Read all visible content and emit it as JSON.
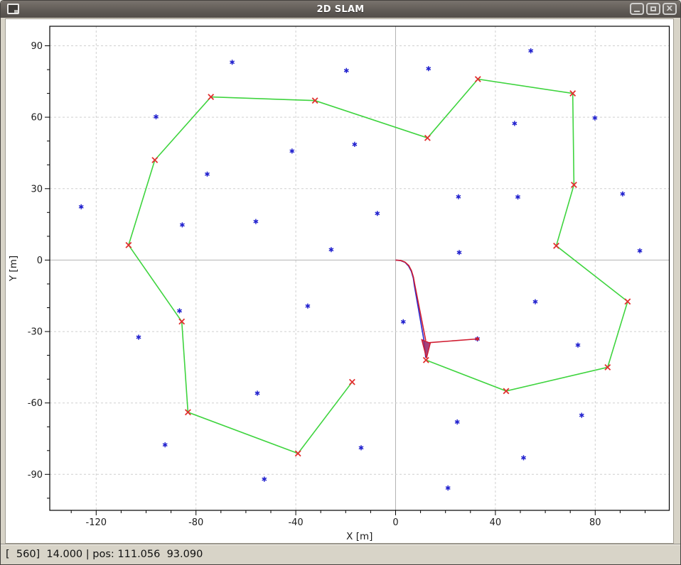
{
  "window": {
    "title": "2D SLAM",
    "icon": "window-icon",
    "controls": [
      {
        "name": "minimize"
      },
      {
        "name": "maximize"
      },
      {
        "name": "close"
      }
    ]
  },
  "status": {
    "text": "[  560]  14.000 | pos: 111.056  93.090"
  },
  "chart_data": {
    "type": "scatter",
    "title": "2D SLAM",
    "xlabel": "X [m]",
    "ylabel": "Y [m]",
    "xlim": [
      -138.6,
      109.7
    ],
    "ylim": [
      -105.1,
      98.2
    ],
    "xticks": [
      -120,
      -80,
      -40,
      0,
      40,
      80
    ],
    "yticks": [
      90,
      60,
      30,
      0,
      -30,
      -60,
      -90
    ],
    "minor_tick_step": 10,
    "grid": "major dashed light-gray, solid light line at x=0 and y=0",
    "legend": "none",
    "colors": {
      "landmark": "#2424cf",
      "waypoint_marker": "#e23030",
      "waypoint_path": "#3ed43e",
      "trajectory_true": "#d01c30",
      "trajectory_estimated": "#2a2ad0",
      "robot_fill": "#9c2f6d",
      "grid_dashed": "#cfcfcf",
      "grid_zero": "#b3b3b3"
    },
    "series": [
      {
        "name": "landmarks",
        "marker": "asterisk",
        "color": "#2424cf",
        "points": [
          [
            -126.0,
            22.4
          ],
          [
            -103.0,
            -32.4
          ],
          [
            -96.0,
            60.2
          ],
          [
            -92.4,
            -77.6
          ],
          [
            -86.6,
            -21.3
          ],
          [
            -85.5,
            14.8
          ],
          [
            -75.5,
            36.1
          ],
          [
            -65.5,
            83.1
          ],
          [
            -56.0,
            16.2
          ],
          [
            -55.4,
            -55.9
          ],
          [
            -52.6,
            -92.0
          ],
          [
            -41.5,
            45.8
          ],
          [
            -35.2,
            -19.3
          ],
          [
            -25.8,
            4.4
          ],
          [
            -19.7,
            79.6
          ],
          [
            -16.4,
            48.6
          ],
          [
            -13.8,
            -78.8
          ],
          [
            -7.3,
            19.6
          ],
          [
            3.1,
            -25.9
          ],
          [
            13.2,
            80.4
          ],
          [
            21.0,
            -95.7
          ],
          [
            24.7,
            -68.0
          ],
          [
            25.2,
            26.6
          ],
          [
            25.5,
            3.2
          ],
          [
            32.8,
            -33.1
          ],
          [
            47.7,
            57.4
          ],
          [
            49.0,
            26.5
          ],
          [
            51.3,
            -83.0
          ],
          [
            54.2,
            87.9
          ],
          [
            56.0,
            -17.5
          ],
          [
            73.1,
            -35.7
          ],
          [
            74.6,
            -65.2
          ],
          [
            79.9,
            59.7
          ],
          [
            91.0,
            27.8
          ],
          [
            97.9,
            3.9
          ]
        ]
      },
      {
        "name": "waypoints",
        "marker": "x",
        "color": "#e23030",
        "connected": true,
        "line_color": "#3ed43e",
        "points": [
          [
            12.2,
            -42.0
          ],
          [
            44.3,
            -55.0
          ],
          [
            85.0,
            -45.0
          ],
          [
            93.0,
            -17.4
          ],
          [
            64.4,
            6.0
          ],
          [
            71.5,
            31.6
          ],
          [
            71.0,
            70.0
          ],
          [
            33.0,
            76.0
          ],
          [
            12.8,
            51.3
          ],
          [
            -32.3,
            67.0
          ],
          [
            -74.0,
            68.5
          ],
          [
            -96.5,
            42.0
          ],
          [
            -107.0,
            6.3
          ],
          [
            -85.7,
            -25.8
          ],
          [
            -83.2,
            -63.9
          ],
          [
            -39.1,
            -81.2
          ],
          [
            -17.4,
            -51.2
          ]
        ]
      },
      {
        "name": "trajectory_estimated",
        "type": "path",
        "color": "#2a2ad0",
        "points": [
          [
            0,
            0
          ],
          [
            2.0,
            -0.2
          ],
          [
            3.8,
            -0.95
          ],
          [
            5.2,
            -2.5
          ],
          [
            6.3,
            -4.7
          ],
          [
            7.1,
            -7.6
          ],
          [
            7.5,
            -10.5
          ],
          [
            11.4,
            -33.9
          ],
          [
            12.1,
            -41.0
          ]
        ]
      },
      {
        "name": "trajectory_true",
        "type": "path",
        "color": "#d01c30",
        "points": [
          [
            0,
            0
          ],
          [
            2.0,
            -0.15
          ],
          [
            3.8,
            -0.85
          ],
          [
            5.3,
            -2.3
          ],
          [
            6.4,
            -4.5
          ],
          [
            7.2,
            -7.3
          ],
          [
            7.7,
            -10.3
          ],
          [
            12.1,
            -33.8
          ]
        ]
      },
      {
        "name": "observation_ray",
        "type": "segment",
        "color": "#d01c30",
        "from": [
          13.2,
          -34.7
        ],
        "to": [
          32.8,
          -33.1
        ],
        "end_dot": true
      },
      {
        "name": "robot_pose",
        "type": "polygon",
        "fill": "#9c2f6d",
        "stroke": "#d01c30",
        "points": [
          [
            10.5,
            -33.4
          ],
          [
            13.9,
            -34.9
          ],
          [
            12.4,
            -41.2
          ]
        ]
      }
    ]
  }
}
